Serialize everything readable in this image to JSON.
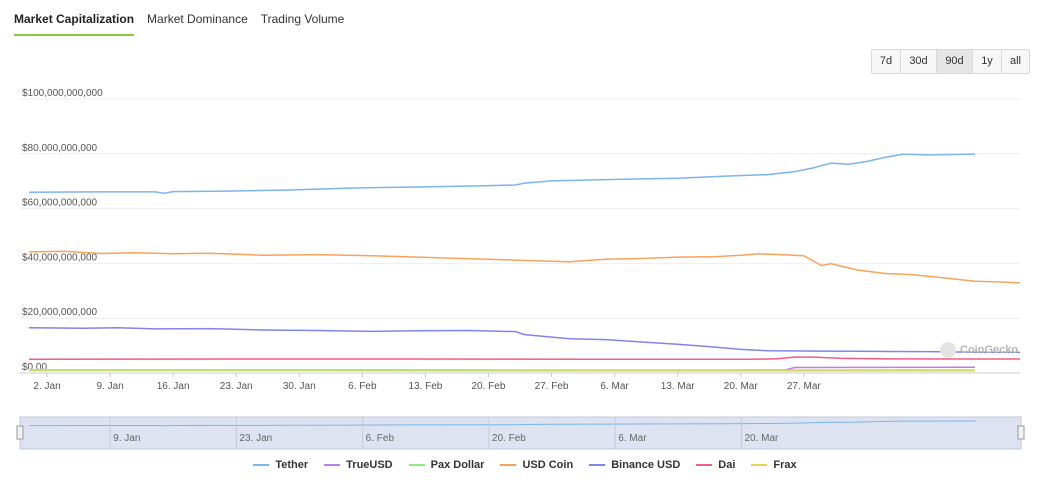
{
  "tabs": [
    {
      "label": "Market Capitalization",
      "active": true
    },
    {
      "label": "Market Dominance",
      "active": false
    },
    {
      "label": "Trading Volume",
      "active": false
    }
  ],
  "ranges": [
    {
      "label": "7d",
      "active": false
    },
    {
      "label": "30d",
      "active": false
    },
    {
      "label": "90d",
      "active": true
    },
    {
      "label": "1y",
      "active": false
    },
    {
      "label": "all",
      "active": false
    }
  ],
  "watermark": "CoinGecko",
  "chart_data": {
    "type": "line",
    "ylim": [
      0,
      100000000000
    ],
    "y_ticks": [
      {
        "value": 0,
        "label": "$0.00"
      },
      {
        "value": 20000000000,
        "label": "$20,000,000,000"
      },
      {
        "value": 40000000000,
        "label": "$40,000,000,000"
      },
      {
        "value": 60000000000,
        "label": "$60,000,000,000"
      },
      {
        "value": 80000000000,
        "label": "$80,000,000,000"
      },
      {
        "value": 100000000000,
        "label": "$100,000,000,000"
      }
    ],
    "x_tick_labels": [
      "2. Jan",
      "9. Jan",
      "16. Jan",
      "23. Jan",
      "30. Jan",
      "6. Feb",
      "13. Feb",
      "20. Feb",
      "27. Feb",
      "6. Mar",
      "13. Mar",
      "20. Mar",
      "27. Mar"
    ],
    "navigator_tick_labels": [
      "9. Jan",
      "23. Jan",
      "6. Feb",
      "20. Feb",
      "6. Mar",
      "20. Mar"
    ],
    "x_unit": "days since 2. Jan",
    "grid": true,
    "legend_position": "bottom",
    "series": [
      {
        "name": "Tether",
        "color": "#7cb5ec",
        "points": [
          [
            -2,
            66.0
          ],
          [
            5,
            66.1
          ],
          [
            12,
            66.1
          ],
          [
            13,
            65.6
          ],
          [
            14,
            66.2
          ],
          [
            20,
            66.4
          ],
          [
            27,
            66.8
          ],
          [
            34,
            67.5
          ],
          [
            41,
            67.9
          ],
          [
            48,
            68.3
          ],
          [
            52,
            68.6
          ],
          [
            53,
            69.3
          ],
          [
            56,
            70.1
          ],
          [
            62,
            70.6
          ],
          [
            70,
            71.1
          ],
          [
            75,
            71.8
          ],
          [
            80,
            72.4
          ],
          [
            83,
            73.5
          ],
          [
            85,
            74.8
          ],
          [
            87,
            76.6
          ],
          [
            89,
            76.2
          ],
          [
            91,
            77.2
          ],
          [
            93,
            78.7
          ],
          [
            95,
            79.8
          ],
          [
            98,
            79.6
          ],
          [
            103,
            79.9
          ]
        ]
      },
      {
        "name": "TrueUSD",
        "color": "#c17de6",
        "points": [
          [
            -2,
            1.0
          ],
          [
            30,
            1.0
          ],
          [
            60,
            1.0
          ],
          [
            75,
            1.0
          ],
          [
            82,
            1.2
          ],
          [
            83,
            2.0
          ],
          [
            103,
            2.1
          ]
        ]
      },
      {
        "name": "Pax Dollar",
        "color": "#90ed7d",
        "points": [
          [
            -2,
            0.9
          ],
          [
            30,
            0.9
          ],
          [
            60,
            0.8
          ],
          [
            90,
            0.8
          ],
          [
            103,
            0.8
          ]
        ]
      },
      {
        "name": "USD Coin",
        "color": "#f7a35c",
        "points": [
          [
            -2,
            44.2
          ],
          [
            2,
            44.4
          ],
          [
            6,
            43.6
          ],
          [
            10,
            43.9
          ],
          [
            14,
            43.5
          ],
          [
            18,
            43.7
          ],
          [
            24,
            43.0
          ],
          [
            30,
            43.2
          ],
          [
            36,
            42.8
          ],
          [
            42,
            42.2
          ],
          [
            48,
            41.6
          ],
          [
            54,
            41.0
          ],
          [
            58,
            40.6
          ],
          [
            62,
            41.5
          ],
          [
            66,
            41.8
          ],
          [
            70,
            42.3
          ],
          [
            74,
            42.4
          ],
          [
            77,
            43.0
          ],
          [
            79,
            43.5
          ],
          [
            82,
            43.1
          ],
          [
            84,
            42.8
          ],
          [
            86,
            39.2
          ],
          [
            87,
            39.9
          ],
          [
            88,
            39.1
          ],
          [
            90,
            37.6
          ],
          [
            93,
            36.3
          ],
          [
            96,
            35.9
          ],
          [
            99,
            34.9
          ],
          [
            103,
            33.5
          ],
          [
            106,
            33.2
          ],
          [
            108,
            32.9
          ]
        ]
      },
      {
        "name": "Binance USD",
        "color": "#8085e9",
        "points": [
          [
            -2,
            16.5
          ],
          [
            4,
            16.3
          ],
          [
            8,
            16.5
          ],
          [
            12,
            16.1
          ],
          [
            18,
            16.2
          ],
          [
            24,
            15.7
          ],
          [
            30,
            15.5
          ],
          [
            36,
            15.2
          ],
          [
            41,
            15.4
          ],
          [
            47,
            15.5
          ],
          [
            52,
            15.1
          ],
          [
            53,
            14.0
          ],
          [
            55,
            13.4
          ],
          [
            58,
            12.5
          ],
          [
            62,
            12.2
          ],
          [
            66,
            11.3
          ],
          [
            70,
            10.5
          ],
          [
            74,
            9.5
          ],
          [
            77,
            8.6
          ],
          [
            80,
            8.1
          ],
          [
            86,
            8.0
          ],
          [
            92,
            7.9
          ],
          [
            98,
            7.8
          ],
          [
            103,
            7.6
          ],
          [
            108,
            7.5
          ]
        ]
      },
      {
        "name": "Dai",
        "color": "#f15c80",
        "points": [
          [
            -2,
            5.0
          ],
          [
            20,
            5.1
          ],
          [
            40,
            5.1
          ],
          [
            60,
            5.0
          ],
          [
            78,
            5.0
          ],
          [
            81,
            5.2
          ],
          [
            83,
            5.8
          ],
          [
            85,
            5.8
          ],
          [
            88,
            5.4
          ],
          [
            92,
            5.2
          ],
          [
            103,
            5.1
          ],
          [
            108,
            5.1
          ]
        ]
      },
      {
        "name": "Frax",
        "color": "#e4d354",
        "points": [
          [
            -2,
            1.2
          ],
          [
            30,
            1.2
          ],
          [
            60,
            1.1
          ],
          [
            80,
            1.1
          ],
          [
            103,
            1.1
          ]
        ]
      }
    ],
    "y_scale_note": "series values in billions USD"
  }
}
